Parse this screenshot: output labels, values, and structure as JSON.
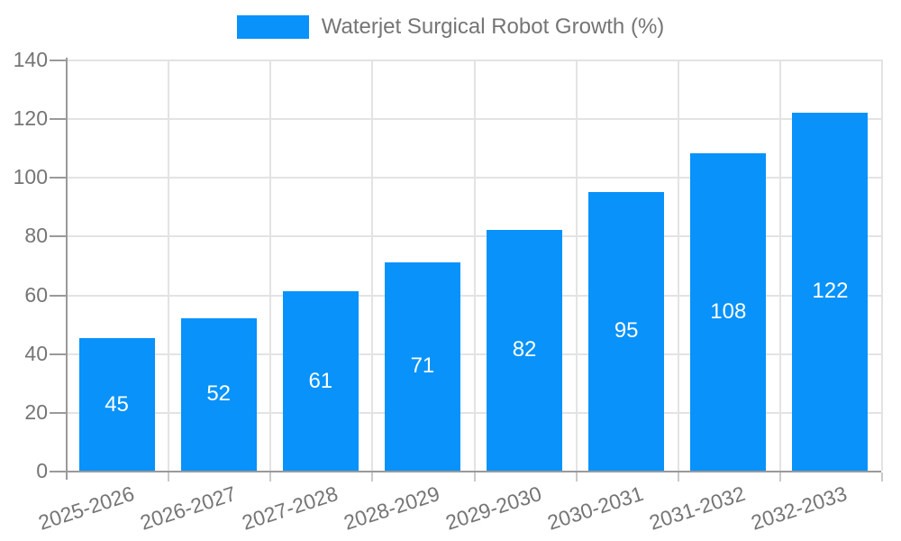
{
  "chart_data": {
    "type": "bar",
    "title": "Waterjet Surgical Robot Growth (%)",
    "legend_entries": [
      "Waterjet Surgical Robot Growth (%)"
    ],
    "legend_position": "top",
    "categories": [
      "2025-2026",
      "2026-2027",
      "2027-2028",
      "2028-2029",
      "2029-2030",
      "2030-2031",
      "2031-2032",
      "2032-2033"
    ],
    "series": [
      {
        "name": "Waterjet Surgical Robot Growth (%)",
        "values": [
          45,
          52,
          61,
          71,
          82,
          95,
          108,
          122
        ]
      }
    ],
    "value_labels_shown": true,
    "xlabel": "",
    "ylabel": "",
    "ylim": [
      0,
      140
    ],
    "y_ticks": [
      0,
      20,
      40,
      60,
      80,
      100,
      120,
      140
    ],
    "grid": true,
    "colors": {
      "bar": "#0892FA",
      "value_label": "#FFFFFF",
      "axis_text": "#757575",
      "grid_line": "#E3E3E3",
      "axis_line": "#9A9A9A"
    }
  }
}
